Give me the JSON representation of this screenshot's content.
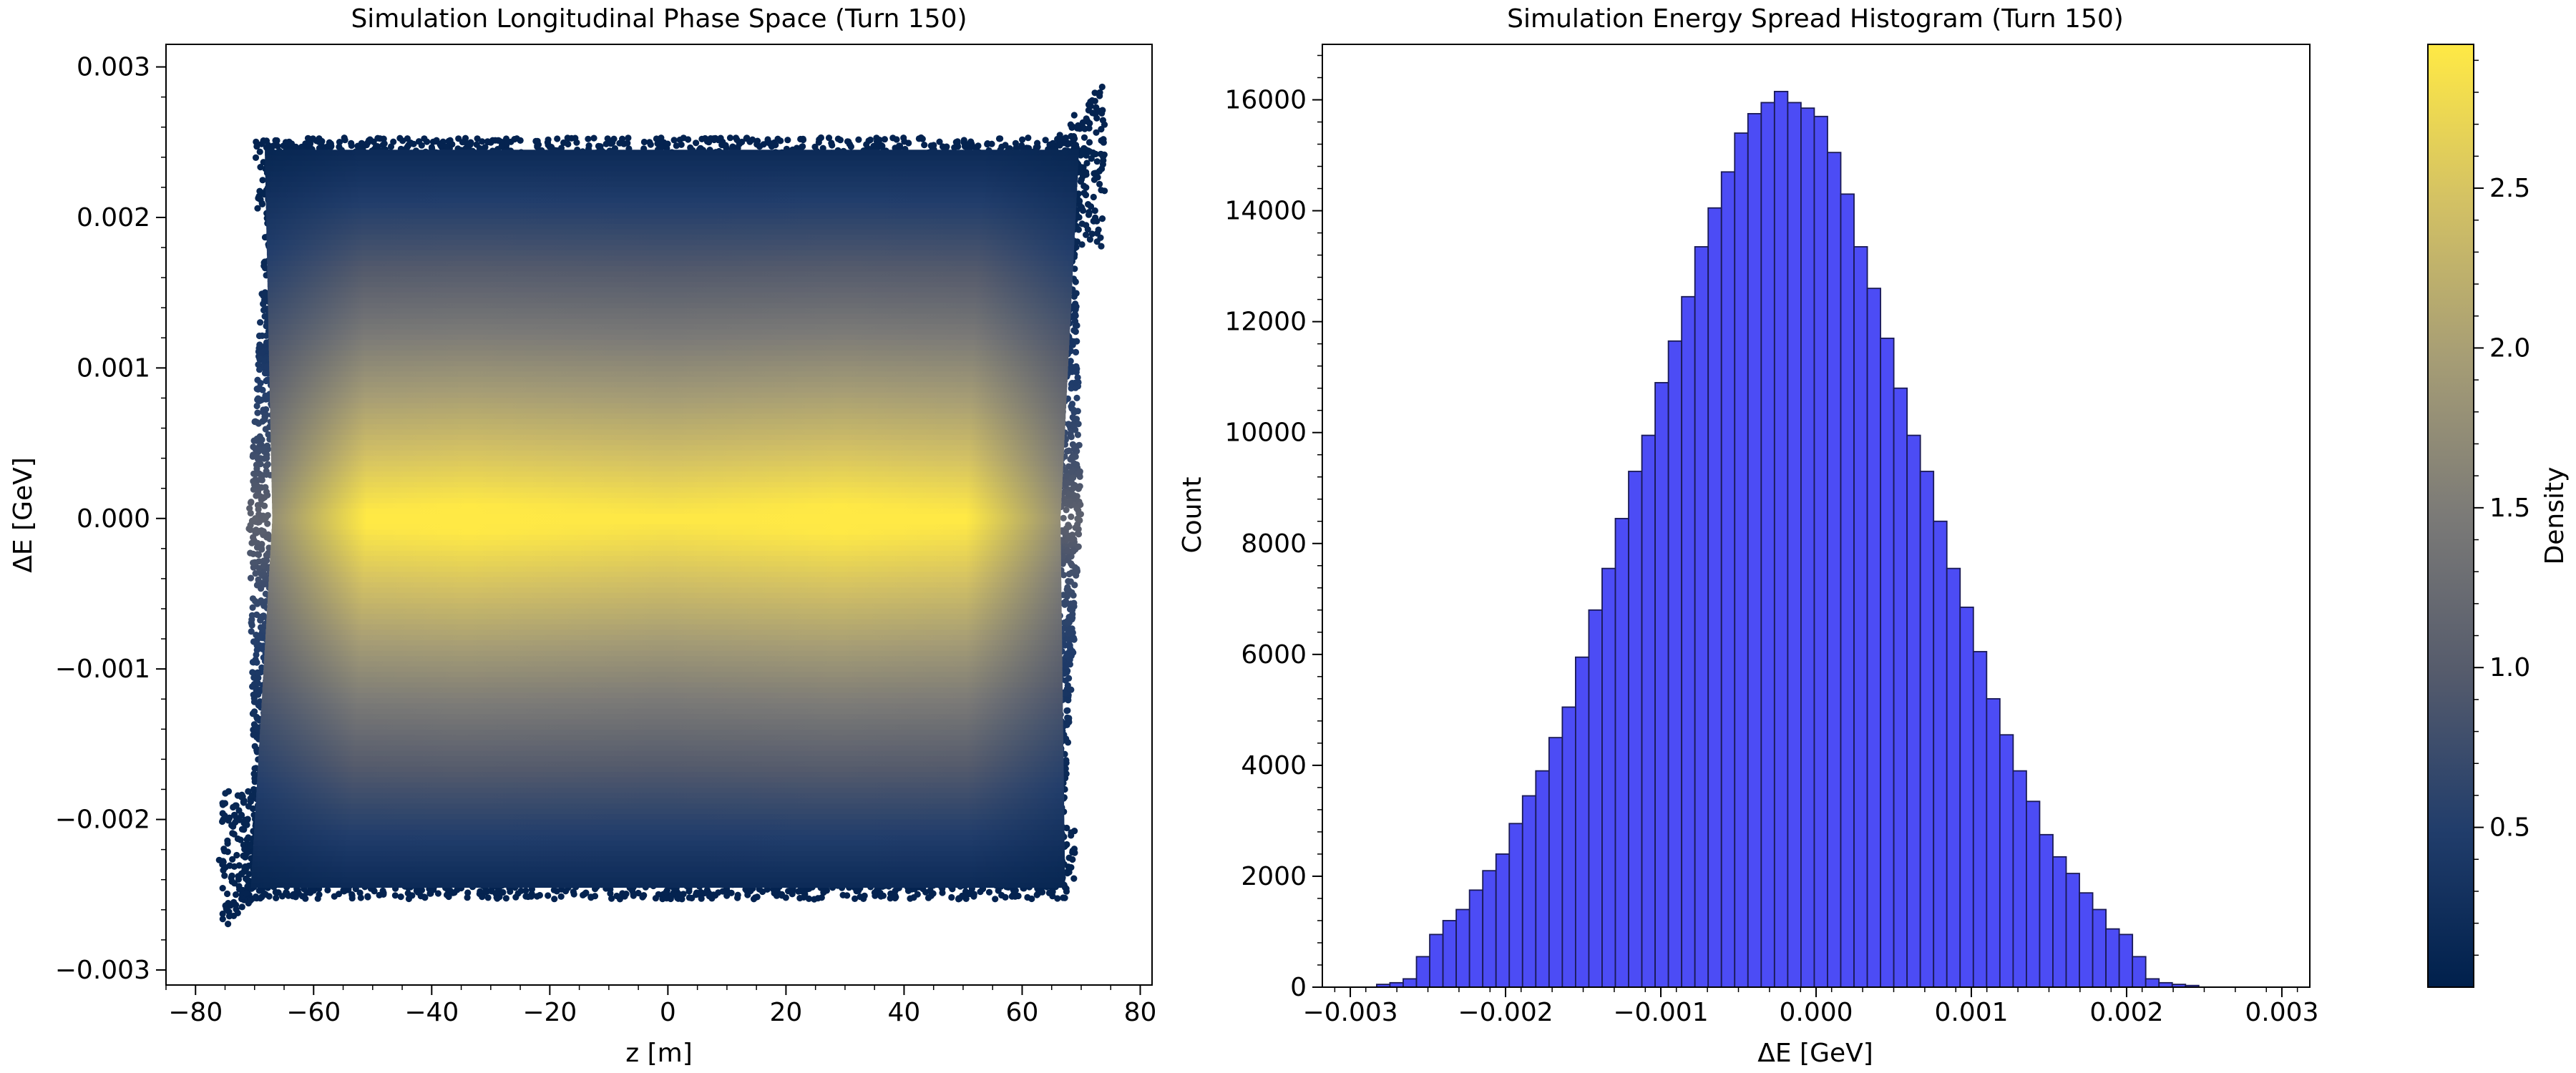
{
  "figure": {
    "colorbar": {
      "label": "Density",
      "range": [
        0.0,
        2.95
      ],
      "ticks": [
        0.5,
        1.0,
        1.5,
        2.0,
        2.5
      ],
      "tick_labels": [
        "0.5",
        "1.0",
        "1.5",
        "2.0",
        "2.5"
      ],
      "colormap": "cividis",
      "stops": [
        "#00204c",
        "#213d6b",
        "#555b6c",
        "#7b7a77",
        "#a69d75",
        "#d3c164",
        "#ffe945"
      ]
    }
  },
  "chart_data": [
    {
      "type": "scatter",
      "title": "Simulation Longitudinal Phase Space (Turn 150)",
      "xlabel": "z [m]",
      "ylabel": "ΔE [GeV]",
      "xlim": [
        -85,
        82
      ],
      "ylim": [
        -0.0031,
        0.00315
      ],
      "xticks": [
        -80,
        -60,
        -40,
        -20,
        0,
        20,
        40,
        60,
        80
      ],
      "xtick_labels": [
        "−80",
        "−60",
        "−40",
        "−20",
        "0",
        "20",
        "40",
        "60",
        "80"
      ],
      "yticks": [
        -0.003,
        -0.002,
        -0.001,
        0.0,
        0.001,
        0.002,
        0.003
      ],
      "ytick_labels": [
        "−0.003",
        "−0.002",
        "−0.001",
        "0.000",
        "0.001",
        "0.002",
        "0.003"
      ],
      "color_by": "density",
      "distribution": {
        "z_range": [
          -71,
          70
        ],
        "dE_range": [
          -0.0025,
          0.0025
        ],
        "dE_distribution": "triangular, peak at 0",
        "tail_upper_right": {
          "z": [
            62,
            74
          ],
          "dE_max": 0.0029
        },
        "tail_lower_left": {
          "z": [
            -76,
            -65
          ],
          "dE_min": -0.00275
        },
        "density_peak_z": [
          -35,
          30
        ]
      }
    },
    {
      "type": "bar",
      "title": "Simulation Energy Spread Histogram (Turn 150)",
      "xlabel": "ΔE [GeV]",
      "ylabel": "Count",
      "xlim": [
        -0.00318,
        0.00318
      ],
      "ylim": [
        0,
        17000
      ],
      "xticks": [
        -0.003,
        -0.002,
        -0.001,
        0.0,
        0.001,
        0.002,
        0.003
      ],
      "xtick_labels": [
        "−0.003",
        "−0.002",
        "−0.001",
        "0.000",
        "0.001",
        "0.002",
        "0.003"
      ],
      "yticks": [
        0,
        2000,
        4000,
        6000,
        8000,
        10000,
        12000,
        14000,
        16000
      ],
      "ytick_labels": [
        "0",
        "2000",
        "4000",
        "6000",
        "8000",
        "10000",
        "12000",
        "14000",
        "16000"
      ],
      "bar_color": "#4c4cf5",
      "bin_edges_start": -0.00283,
      "bin_width": 8.54e-05,
      "values": [
        50,
        80,
        150,
        550,
        950,
        1200,
        1400,
        1750,
        2100,
        2400,
        2950,
        3450,
        3900,
        4500,
        5050,
        5950,
        6800,
        7550,
        8450,
        9300,
        9950,
        10900,
        11650,
        12450,
        13350,
        14050,
        14700,
        15400,
        15750,
        15950,
        16150,
        15950,
        15850,
        15700,
        15050,
        14300,
        13350,
        12600,
        11700,
        10800,
        9950,
        9300,
        8400,
        7550,
        6850,
        6050,
        5200,
        4550,
        3900,
        3350,
        2750,
        2350,
        2050,
        1700,
        1400,
        1050,
        950,
        550,
        150,
        80,
        50,
        30
      ]
    }
  ]
}
